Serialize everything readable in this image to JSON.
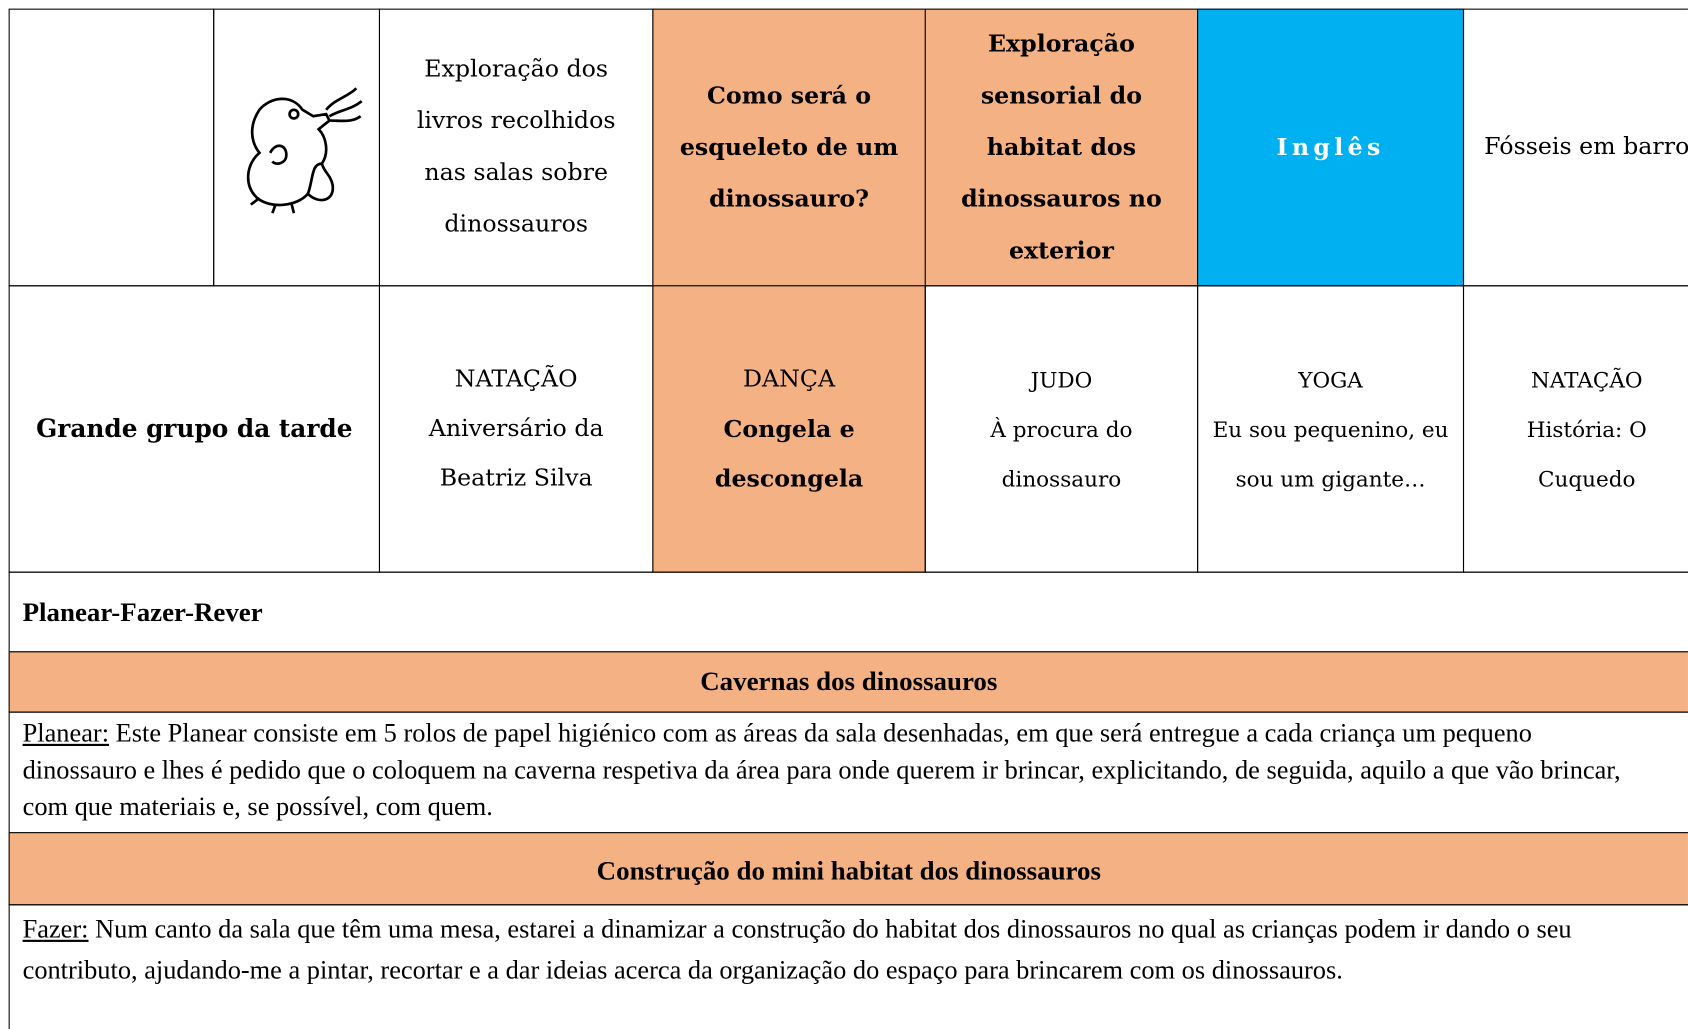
{
  "top_row": [
    "Exploração dos livros recolhidos nas salas sobre dinossauros",
    "Como será o esqueleto de um dinossauro?",
    "Exploração sensorial do habitat dos dinossauros no exterior",
    "Inglês",
    "Fósseis em barro"
  ],
  "afternoon_row": {
    "label": "Grande grupo da tarde",
    "cells": [
      [
        "NATAÇÃO",
        "Aniversário da Beatriz Silva"
      ],
      [
        "DANÇA",
        "Congela e descongela"
      ],
      [
        "JUDO",
        "À procura do dinossauro"
      ],
      [
        "YOGA",
        "Eu sou pequenino, eu sou um gigante…"
      ],
      [
        "NATAÇÃO",
        "História: O Cuquedo"
      ]
    ]
  },
  "plan_section": {
    "title": "Planear-Fazer-Rever",
    "blocks": [
      {
        "heading": "Cavernas dos dinossauros",
        "label": "Planear:",
        "text": "Este Planear consiste em 5 rolos de papel higiénico com as áreas da sala desenhadas, em que será entregue a cada criança um pequeno dinossauro e lhes é pedido que o coloquem na caverna respetiva da área para onde querem ir brincar, explicitando, de seguida, aquilo a que vão brincar, com que materiais e, se possível, com quem."
      },
      {
        "heading": "Construção do mini habitat dos dinossauros",
        "label": "Fazer:",
        "text": "Num canto da sala que têm uma mesa, estarei a dinamizar a construção do habitat dos dinossauros no qual as crianças podem ir dando o seu contributo, ajudando-me a pintar, recortar e a dar ideias acerca da organização do espaço para brincarem com os dinossauros."
      }
    ]
  }
}
